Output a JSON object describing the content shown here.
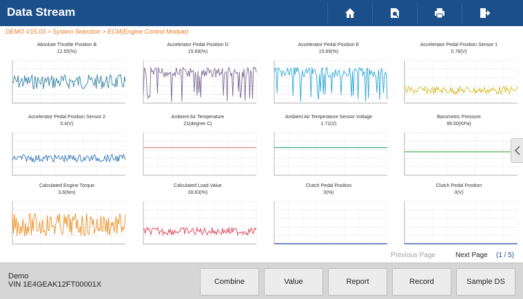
{
  "header": {
    "title": "Data Stream",
    "bg_color": "#1b4f8a",
    "buttons": [
      {
        "icon": "home-icon"
      },
      {
        "icon": "print-preview-icon"
      },
      {
        "icon": "printer-icon"
      },
      {
        "icon": "exit-icon"
      }
    ]
  },
  "breadcrumb": "DEMO V15.03 > System Selection > ECM(Engine Control Module)",
  "charts": [
    {
      "title": "Absolute Throttle Position B",
      "value": "12.55(%)",
      "color": "#2e7fa0",
      "pattern": "noisy",
      "level": 0.5
    },
    {
      "title": "Accelerator Pedal Position D",
      "value": "15.69(%)",
      "color": "#7a6a94",
      "pattern": "spiky-down",
      "level": 0.72
    },
    {
      "title": "Accelerator Pedal Position E",
      "value": "15.69(%)",
      "color": "#2ba7d8",
      "pattern": "spiky-down",
      "level": 0.72
    },
    {
      "title": "Accelerator Pedal Position Sensor 1",
      "value": "0.78(V)",
      "color": "#d7b928",
      "pattern": "low-noisy",
      "level": 0.3
    },
    {
      "title": "Accelerator Pedal Position Sensor 2",
      "value": "0.4(V)",
      "color": "#2d73b8",
      "pattern": "low-noisy",
      "level": 0.4
    },
    {
      "title": "Ambient Air Temperature",
      "value": "21(degree C)",
      "color": "#c9816d",
      "pattern": "flat",
      "level": 0.65
    },
    {
      "title": "Ambient Air Temperature Sensor Voltage",
      "value": "1.71(V)",
      "color": "#2a9d77",
      "pattern": "flat",
      "level": 0.65
    },
    {
      "title": "Barometric Pressure",
      "value": "99.50(KPa)",
      "color": "#4caf4c",
      "pattern": "flat",
      "level": 0.55
    },
    {
      "title": "Calculated Engine Torque",
      "value": "3.6(Nm)",
      "color": "#f08c1e",
      "pattern": "noisy-wide",
      "level": 0.45
    },
    {
      "title": "Calculated Load Value",
      "value": "28.63(%)",
      "color": "#e0405a",
      "pattern": "low-noisy",
      "level": 0.3
    },
    {
      "title": "Clutch Pedal Position",
      "value": "0(%)",
      "color": "#3b5cc4",
      "pattern": "flat",
      "level": 0.0
    },
    {
      "title": "Clutch Pedal Position",
      "value": "0(V)",
      "color": "#3b5cc4",
      "pattern": "flat",
      "level": 0.0
    }
  ],
  "pager": {
    "previous": "Previous Page",
    "next": "Next Page",
    "page": "(1 / 5)"
  },
  "footer": {
    "line1": "Demo",
    "line2": "VIN 1E4GEAK12FT00001X",
    "buttons": [
      "Combine",
      "Value",
      "Report",
      "Record",
      "Sample DS"
    ]
  }
}
